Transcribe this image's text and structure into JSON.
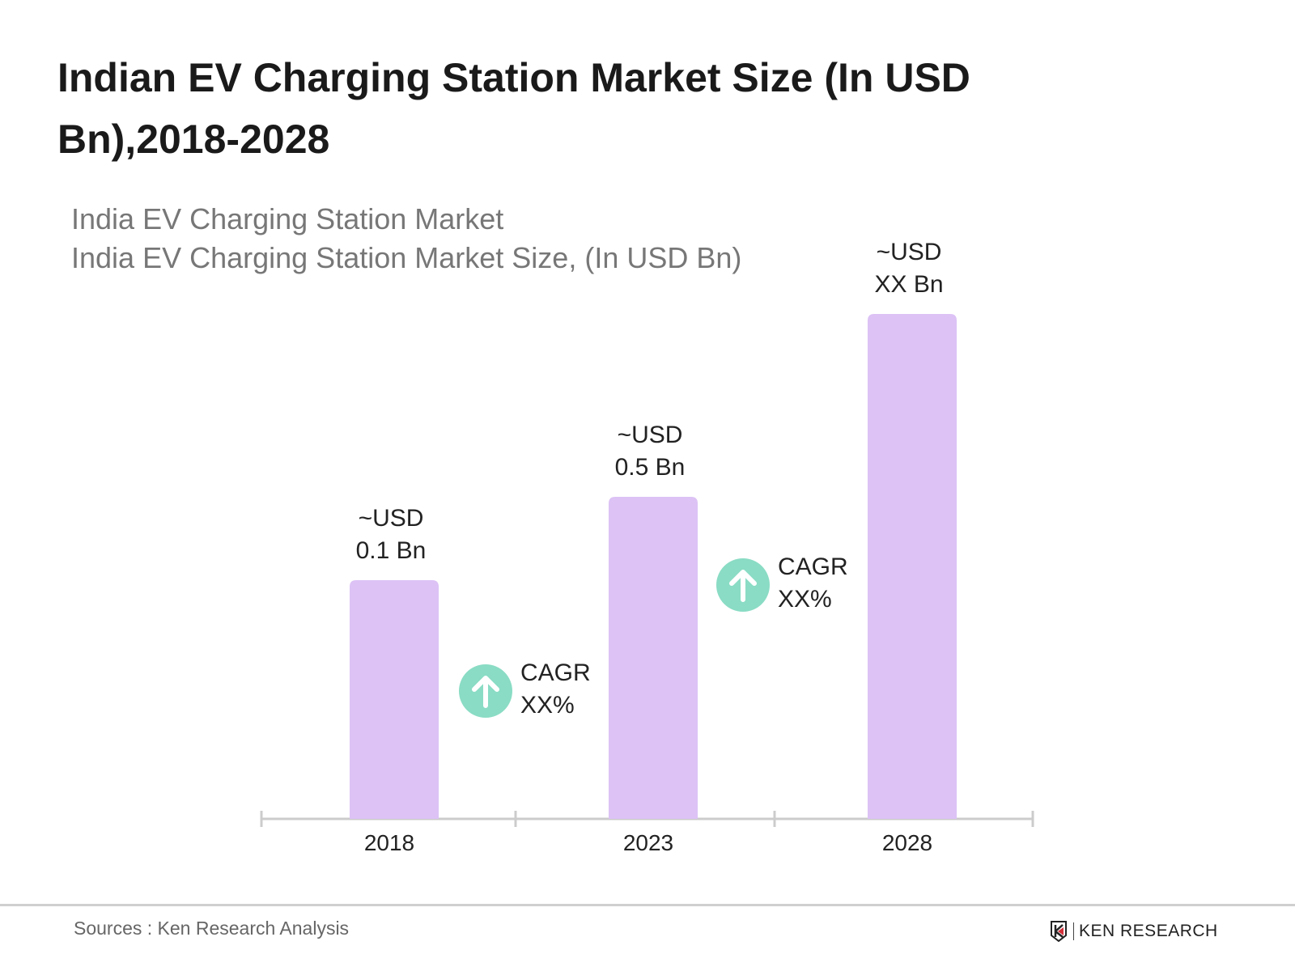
{
  "title": "Indian EV Charging Station Market Size (In USD Bn),2018-2028",
  "subtitle_line1": "India EV Charging Station Market",
  "subtitle_line2": "India EV Charging Station Market Size, (In USD Bn)",
  "chart_data": {
    "type": "bar",
    "categories": [
      "2018",
      "2023",
      "2028"
    ],
    "values": [
      0.1,
      0.5,
      null
    ],
    "data_labels": [
      [
        "~USD",
        "0.1 Bn"
      ],
      [
        "~USD",
        "0.5 Bn"
      ],
      [
        "~USD",
        "XX Bn"
      ]
    ],
    "annotations": [
      {
        "between": [
          "2018",
          "2023"
        ],
        "label1": "CAGR",
        "label2": "XX%",
        "icon": "arrow-up-circle-icon"
      },
      {
        "between": [
          "2023",
          "2028"
        ],
        "label1": "CAGR",
        "label2": "XX%",
        "icon": "arrow-up-circle-icon"
      }
    ],
    "bar_color": "#dcc2f5",
    "cagr_color": "#8adcc4",
    "axis_color": "#cccccc",
    "grid": false
  },
  "footer": {
    "source": "Sources : Ken Research Analysis",
    "logo_text": "KEN RESEARCH"
  }
}
